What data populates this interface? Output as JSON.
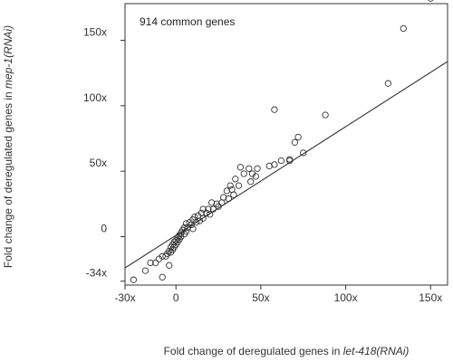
{
  "chart_data": {
    "type": "scatter",
    "annotation": "914 common genes",
    "xlabel_prefix": "Fold change of deregulated genes in ",
    "xlabel_gene": "let-418(RNAi)",
    "ylabel_prefix": "Fold change of deregulated genes in ",
    "ylabel_gene": "mep-1(RNAi)",
    "xlim": [
      -30,
      160
    ],
    "ylim": [
      -37,
      178
    ],
    "x_ticks": [
      {
        "value": -30,
        "label": "-30x"
      },
      {
        "value": 0,
        "label": "0"
      },
      {
        "value": 50,
        "label": "50x"
      },
      {
        "value": 100,
        "label": "100x"
      },
      {
        "value": 150,
        "label": "150x"
      }
    ],
    "y_ticks": [
      {
        "value": -34,
        "label": "-34x"
      },
      {
        "value": 0,
        "label": "0"
      },
      {
        "value": 50,
        "label": "50x"
      },
      {
        "value": 100,
        "label": "100x"
      },
      {
        "value": 150,
        "label": "150x"
      }
    ],
    "fit_line": {
      "slope": 0.83,
      "intercept": 1
    },
    "points": [
      [
        150,
        182
      ],
      [
        134,
        159
      ],
      [
        125,
        117
      ],
      [
        88,
        93
      ],
      [
        58,
        97
      ],
      [
        72,
        76
      ],
      [
        70,
        72
      ],
      [
        75,
        64
      ],
      [
        67,
        59
      ],
      [
        62,
        58
      ],
      [
        67,
        58
      ],
      [
        58,
        55
      ],
      [
        55,
        54
      ],
      [
        48,
        52
      ],
      [
        43,
        52
      ],
      [
        45,
        48
      ],
      [
        38,
        53
      ],
      [
        40,
        48
      ],
      [
        47,
        46
      ],
      [
        44,
        42
      ],
      [
        35,
        44
      ],
      [
        37,
        39
      ],
      [
        32,
        39
      ],
      [
        33,
        36
      ],
      [
        30,
        35
      ],
      [
        34,
        32
      ],
      [
        28,
        30
      ],
      [
        31,
        29
      ],
      [
        27,
        26
      ],
      [
        24,
        25
      ],
      [
        21,
        26
      ],
      [
        25,
        23
      ],
      [
        22,
        21
      ],
      [
        19,
        21
      ],
      [
        16,
        21
      ],
      [
        18,
        18
      ],
      [
        15,
        18
      ],
      [
        20,
        17
      ],
      [
        13,
        16
      ],
      [
        16,
        14
      ],
      [
        11,
        15
      ],
      [
        14,
        12
      ],
      [
        10,
        13
      ],
      [
        12,
        11
      ],
      [
        8,
        11
      ],
      [
        9,
        9
      ],
      [
        6,
        10
      ],
      [
        7,
        7
      ],
      [
        5,
        7
      ],
      [
        10,
        6
      ],
      [
        4,
        5
      ],
      [
        6,
        4
      ],
      [
        3,
        3
      ],
      [
        5,
        2
      ],
      [
        2,
        1
      ],
      [
        3,
        0
      ],
      [
        1,
        -1
      ],
      [
        2,
        -2
      ],
      [
        0,
        -3
      ],
      [
        1,
        -4
      ],
      [
        -1,
        -4
      ],
      [
        0,
        -6
      ],
      [
        -2,
        -6
      ],
      [
        -1,
        -8
      ],
      [
        -3,
        -8
      ],
      [
        -2,
        -10
      ],
      [
        -4,
        -11
      ],
      [
        -3,
        -12
      ],
      [
        -5,
        -13
      ],
      [
        -6,
        -15
      ],
      [
        -8,
        -15
      ],
      [
        -10,
        -17
      ],
      [
        -12,
        -20
      ],
      [
        -15,
        -20
      ],
      [
        -4,
        -22
      ],
      [
        -18,
        -26
      ],
      [
        -25,
        -33
      ],
      [
        -8,
        -31
      ]
    ]
  }
}
